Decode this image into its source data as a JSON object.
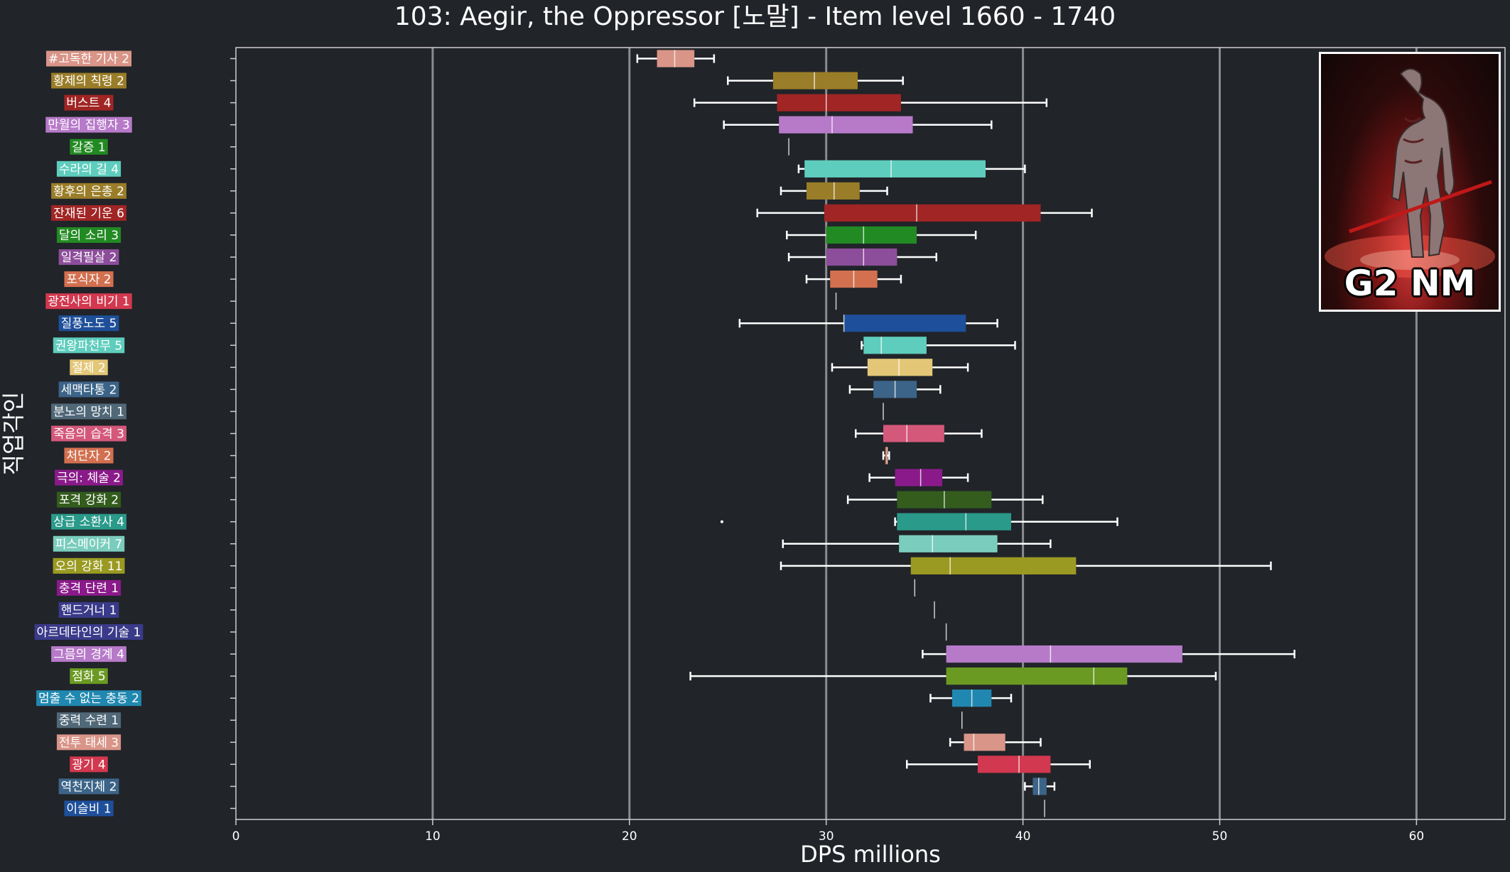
{
  "chart_data": {
    "type": "boxplot",
    "title": "103: Aegir, the Oppressor [노말] - Item level 1660 - 1740",
    "xlabel": "DPS millions",
    "ylabel": "직업각인",
    "xlim": [
      0,
      64.5
    ],
    "xticks": [
      0,
      10,
      20,
      30,
      40,
      50,
      60
    ],
    "grid": "vertical",
    "badge": "G2 NM",
    "series": [
      {
        "name": "#고독한 기사 2",
        "color": "#d99588",
        "whislo": 20.4,
        "q1": 21.4,
        "med": 22.3,
        "q3": 23.3,
        "whishi": 24.3
      },
      {
        "name": "황제의 칙령 2",
        "color": "#9a7d28",
        "whislo": 25.0,
        "q1": 27.3,
        "med": 29.4,
        "q3": 31.6,
        "whishi": 33.9
      },
      {
        "name": "버스트 4",
        "color": "#a02524",
        "whislo": 23.3,
        "q1": 27.5,
        "med": 30.0,
        "q3": 33.8,
        "whishi": 41.2
      },
      {
        "name": "만월의 집행자 3",
        "color": "#b77ac9",
        "whislo": 24.8,
        "q1": 27.6,
        "med": 30.3,
        "q3": 34.4,
        "whishi": 38.4
      },
      {
        "name": "갈증 1",
        "color": "#228a22",
        "whislo": 28.1,
        "q1": 28.1,
        "med": 28.1,
        "q3": 28.1,
        "whishi": 28.1
      },
      {
        "name": "수라의 길 4",
        "color": "#5ecdbd",
        "whislo": 28.6,
        "q1": 28.9,
        "med": 33.3,
        "q3": 38.1,
        "whishi": 40.1
      },
      {
        "name": "황후의 은총 2",
        "color": "#9a7d28",
        "whislo": 27.7,
        "q1": 29.0,
        "med": 30.4,
        "q3": 31.7,
        "whishi": 33.1
      },
      {
        "name": "잔재된 기운 6",
        "color": "#a02524",
        "whislo": 26.5,
        "q1": 29.9,
        "med": 34.6,
        "q3": 40.9,
        "whishi": 43.5
      },
      {
        "name": "달의 소리 3",
        "color": "#228a22",
        "whislo": 28.0,
        "q1": 30.0,
        "med": 31.9,
        "q3": 34.6,
        "whishi": 37.6
      },
      {
        "name": "일격필살 2",
        "color": "#8c4e9a",
        "whislo": 28.1,
        "q1": 30.0,
        "med": 31.9,
        "q3": 33.6,
        "whishi": 35.6
      },
      {
        "name": "포식자 2",
        "color": "#d2704f",
        "whislo": 29.0,
        "q1": 30.2,
        "med": 31.4,
        "q3": 32.6,
        "whishi": 33.8
      },
      {
        "name": "광전사의 비기 1",
        "color": "#d2384f",
        "whislo": 30.5,
        "q1": 30.5,
        "med": 30.5,
        "q3": 30.5,
        "whishi": 30.5
      },
      {
        "name": "질풍노도 5",
        "color": "#1e4f9a",
        "whislo": 25.6,
        "q1": 30.9,
        "med": 30.9,
        "q3": 37.1,
        "whishi": 38.7
      },
      {
        "name": "권왕파천무 5",
        "color": "#5ecdbd",
        "whislo": 31.8,
        "q1": 31.9,
        "med": 32.8,
        "q3": 35.1,
        "whishi": 39.6
      },
      {
        "name": "절제 2",
        "color": "#e3c777",
        "whislo": 30.3,
        "q1": 32.1,
        "med": 33.7,
        "q3": 35.4,
        "whishi": 37.2
      },
      {
        "name": "세맥타통 2",
        "color": "#3c6488",
        "whislo": 31.2,
        "q1": 32.4,
        "med": 33.5,
        "q3": 34.6,
        "whishi": 35.8
      },
      {
        "name": "분노의 망치 1",
        "color": "#506878",
        "whislo": 32.9,
        "q1": 32.9,
        "med": 32.9,
        "q3": 32.9,
        "whishi": 32.9
      },
      {
        "name": "죽음의 습격 3",
        "color": "#d4587a",
        "whislo": 31.5,
        "q1": 32.9,
        "med": 34.1,
        "q3": 36.0,
        "whishi": 37.9
      },
      {
        "name": "처단자 2",
        "color": "#d2704f",
        "whislo": 32.9,
        "q1": 33.0,
        "med": 33.1,
        "q3": 33.1,
        "whishi": 33.2
      },
      {
        "name": "극의: 체술 2",
        "color": "#8a1a8a",
        "whislo": 32.2,
        "q1": 33.5,
        "med": 34.8,
        "q3": 35.9,
        "whishi": 37.2
      },
      {
        "name": "포격 강화 2",
        "color": "#335c1d",
        "whislo": 31.1,
        "q1": 33.6,
        "med": 36.0,
        "q3": 38.4,
        "whishi": 41.0
      },
      {
        "name": "상급 소환사 4",
        "color": "#2a9a8a",
        "whislo": 33.5,
        "q1": 33.6,
        "med": 37.1,
        "q3": 39.4,
        "whishi": 44.8,
        "fliers": [
          24.7
        ]
      },
      {
        "name": "피스메이커 7",
        "color": "#7acdbd",
        "whislo": 27.8,
        "q1": 33.7,
        "med": 35.4,
        "q3": 38.7,
        "whishi": 41.4
      },
      {
        "name": "오의 강화 11",
        "color": "#9a9a22",
        "whislo": 27.7,
        "q1": 34.3,
        "med": 36.3,
        "q3": 42.7,
        "whishi": 52.6
      },
      {
        "name": "충격 단련 1",
        "color": "#8a1a8a",
        "whislo": 34.5,
        "q1": 34.5,
        "med": 34.5,
        "q3": 34.5,
        "whishi": 34.5
      },
      {
        "name": "핸드거너 1",
        "color": "#3a3a8a",
        "whislo": 35.5,
        "q1": 35.5,
        "med": 35.5,
        "q3": 35.5,
        "whishi": 35.5
      },
      {
        "name": "아르데타인의 기술 1",
        "color": "#3a3a8a",
        "whislo": 36.1,
        "q1": 36.1,
        "med": 36.1,
        "q3": 36.1,
        "whishi": 36.1
      },
      {
        "name": "그믐의 경계 4",
        "color": "#b77ac9",
        "whislo": 34.9,
        "q1": 36.1,
        "med": 41.4,
        "q3": 48.1,
        "whishi": 53.8
      },
      {
        "name": "점화 5",
        "color": "#6a9a22",
        "whislo": 23.1,
        "q1": 36.1,
        "med": 43.6,
        "q3": 45.3,
        "whishi": 49.8
      },
      {
        "name": "멈출 수 없는 충동 2",
        "color": "#2088b0",
        "whislo": 35.3,
        "q1": 36.4,
        "med": 37.4,
        "q3": 38.4,
        "whishi": 39.4
      },
      {
        "name": "중력 수련 1",
        "color": "#506878",
        "whislo": 36.9,
        "q1": 36.9,
        "med": 36.9,
        "q3": 36.9,
        "whishi": 36.9
      },
      {
        "name": "전투 태세 3",
        "color": "#d99588",
        "whislo": 36.3,
        "q1": 37.0,
        "med": 37.5,
        "q3": 39.1,
        "whishi": 40.9
      },
      {
        "name": "광기 4",
        "color": "#d2384f",
        "whislo": 34.1,
        "q1": 37.7,
        "med": 39.8,
        "q3": 41.4,
        "whishi": 43.4
      },
      {
        "name": "역천지체 2",
        "color": "#3c6488",
        "whislo": 40.1,
        "q1": 40.5,
        "med": 40.8,
        "q3": 41.2,
        "whishi": 41.6
      },
      {
        "name": "이슬비 1",
        "color": "#1e4f9a",
        "whislo": 41.1,
        "q1": 41.1,
        "med": 41.1,
        "q3": 41.1,
        "whishi": 41.1
      }
    ]
  }
}
